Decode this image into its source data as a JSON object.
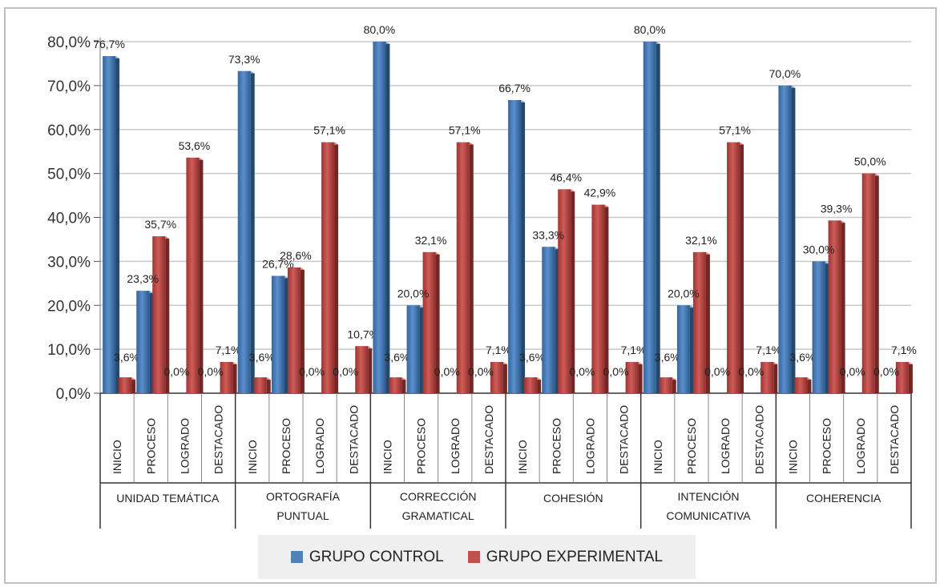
{
  "chart_data": {
    "type": "bar",
    "y_ticks": [
      "0,0%",
      "10,0%",
      "20,0%",
      "30,0%",
      "40,0%",
      "50,0%",
      "60,0%",
      "70,0%",
      "80,0%"
    ],
    "ylim": [
      0,
      80
    ],
    "grid": true,
    "legend_position": "bottom",
    "series": [
      {
        "name": "GRUPO CONTROL",
        "color": "#4f81bd"
      },
      {
        "name": "GRUPO EXPERIMENTAL",
        "color": "#c0504d"
      }
    ],
    "groups": [
      {
        "label": [
          "UNIDAD TEMÁTICA"
        ],
        "categories": [
          "INICIO",
          "PROCESO",
          "LOGRADO",
          "DESTACADO"
        ],
        "control": [
          76.7,
          23.3,
          0.0,
          0.0
        ],
        "experimental": [
          3.6,
          35.7,
          53.6,
          7.1
        ],
        "control_labels": [
          "76,7%",
          "23,3%",
          "0,0%",
          "0,0%"
        ],
        "experimental_labels": [
          "3,6%",
          "35,7%",
          "53,6%",
          "7,1%"
        ]
      },
      {
        "label": [
          "ORTOGRAFÍA",
          "PUNTUAL"
        ],
        "categories": [
          "INICIO",
          "PROCESO",
          "LOGRADO",
          "DESTACADO"
        ],
        "control": [
          73.3,
          26.7,
          0.0,
          0.0
        ],
        "experimental": [
          3.6,
          28.6,
          57.1,
          10.7
        ],
        "control_labels": [
          "73,3%",
          "26,7%",
          "0,0%",
          "0,0%"
        ],
        "experimental_labels": [
          "3,6%",
          "28,6%",
          "57,1%",
          "10,7%"
        ]
      },
      {
        "label": [
          "CORRECCIÓN",
          "GRAMATICAL"
        ],
        "categories": [
          "INICIO",
          "PROCESO",
          "LOGRADO",
          "DESTACADO"
        ],
        "control": [
          80.0,
          20.0,
          0.0,
          0.0
        ],
        "experimental": [
          3.6,
          32.1,
          57.1,
          7.1
        ],
        "control_labels": [
          "80,0%",
          "20,0%",
          "0,0%",
          "0,0%"
        ],
        "experimental_labels": [
          "3,6%",
          "32,1%",
          "57,1%",
          "7,1%"
        ]
      },
      {
        "label": [
          "COHESIÓN"
        ],
        "categories": [
          "INICIO",
          "PROCESO",
          "LOGRADO",
          "DESTACADO"
        ],
        "control": [
          66.7,
          33.3,
          0.0,
          0.0
        ],
        "experimental": [
          3.6,
          46.4,
          42.9,
          7.1
        ],
        "control_labels": [
          "66,7%",
          "33,3%",
          "0,0%",
          "0,0%"
        ],
        "experimental_labels": [
          "3,6%",
          "46,4%",
          "42,9%",
          "7,1%"
        ]
      },
      {
        "label": [
          "INTENCIÓN",
          "COMUNICATIVA"
        ],
        "categories": [
          "INICIO",
          "PROCESO",
          "LOGRADO",
          "DESTACADO"
        ],
        "control": [
          80.0,
          20.0,
          0.0,
          0.0
        ],
        "experimental": [
          3.6,
          32.1,
          57.1,
          7.1
        ],
        "control_labels": [
          "80,0%",
          "20,0%",
          "0,0%",
          "0,0%"
        ],
        "experimental_labels": [
          "3,6%",
          "32,1%",
          "57,1%",
          "7,1%"
        ]
      },
      {
        "label": [
          "COHERENCIA"
        ],
        "categories": [
          "INICIO",
          "PROCESO",
          "LOGRADO",
          "DESTACADO"
        ],
        "control": [
          70.0,
          30.0,
          0.0,
          0.0
        ],
        "experimental": [
          3.6,
          39.3,
          50.0,
          7.1
        ],
        "control_labels": [
          "70,0%",
          "30,0%",
          "0,0%",
          "0,0%"
        ],
        "experimental_labels": [
          "3,6%",
          "39,3%",
          "50,0%",
          "7,1%"
        ]
      }
    ]
  }
}
